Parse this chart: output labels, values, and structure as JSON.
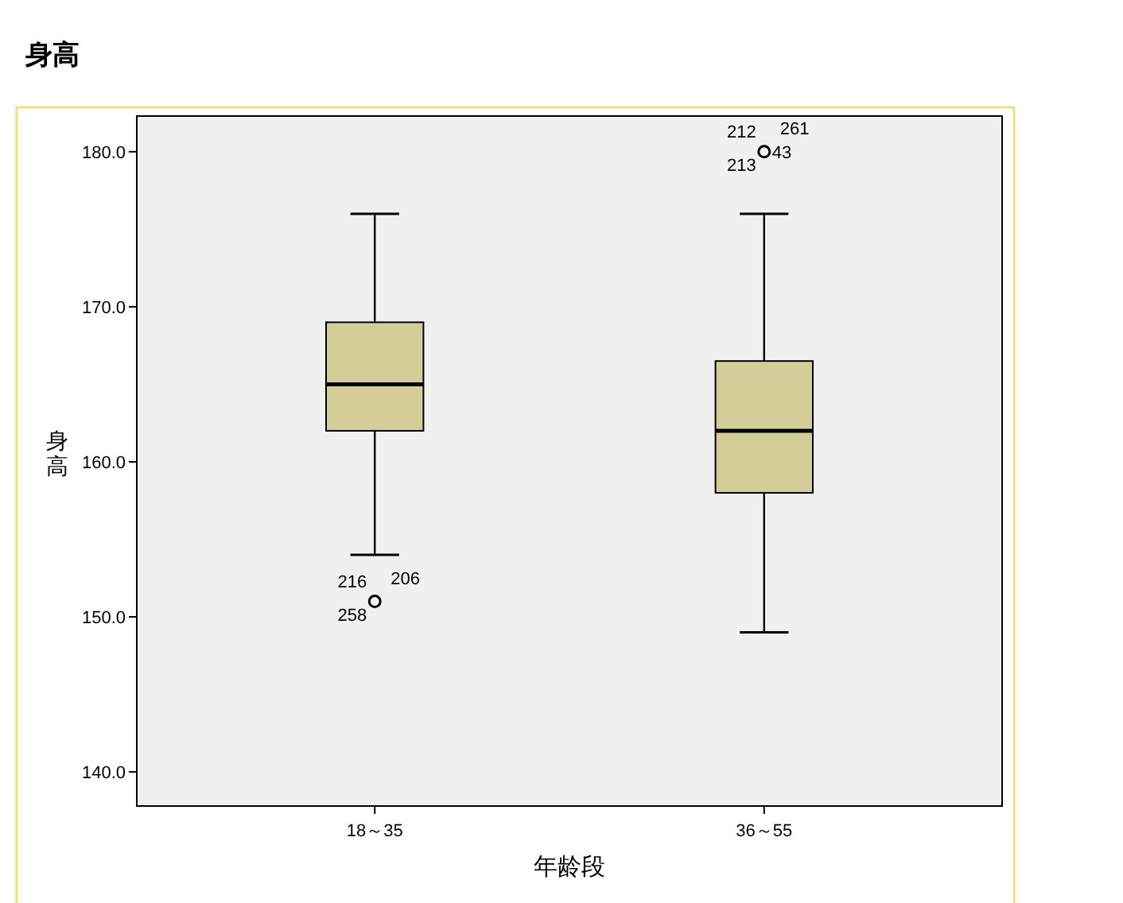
{
  "chart_data": {
    "type": "box",
    "title": "身高",
    "xlabel": "年龄段",
    "ylabel": "身高",
    "categories": [
      "18～35",
      "36～55"
    ],
    "series": [
      {
        "color": "#d3ce97",
        "boxes": [
          {
            "low": 154,
            "q1": 162,
            "median": 165,
            "q3": 169,
            "high": 176,
            "outliers": [
              151
            ]
          },
          {
            "low": 149,
            "q1": 158,
            "median": 162,
            "q3": 166.5,
            "high": 176,
            "outliers": [
              180
            ]
          }
        ]
      }
    ],
    "ylim": [
      137.8,
      182.3
    ],
    "yticks": [
      {
        "value": 140,
        "label": "140.0"
      },
      {
        "value": 150,
        "label": "150.0"
      },
      {
        "value": 160,
        "label": "160.0"
      },
      {
        "value": 170,
        "label": "170.0"
      },
      {
        "value": 180,
        "label": "180.0"
      }
    ],
    "grid": false,
    "annotations": [
      "216",
      "206",
      "258",
      "212",
      "261",
      "213",
      "43"
    ]
  }
}
